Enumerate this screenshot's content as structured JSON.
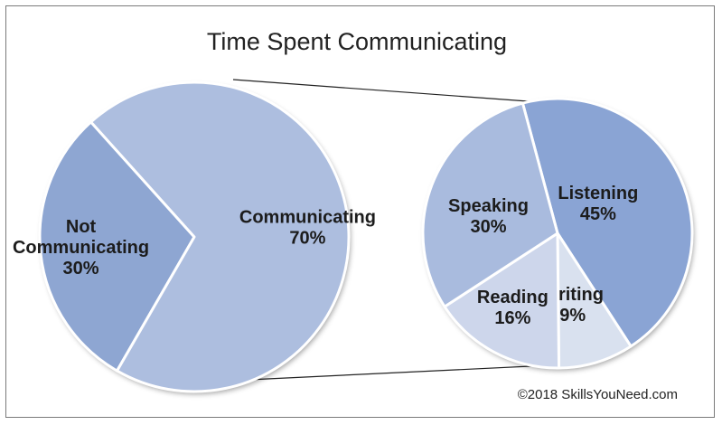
{
  "chart_data": {
    "type": "pie",
    "title": "Time Spent Communicating",
    "copyright": "©2018 SkillsYouNeed.com",
    "pies": [
      {
        "slices": [
          {
            "name": "Not",
            "name2": "Communicating",
            "label": "30%",
            "value": 30,
            "color": "#8ea6d2"
          },
          {
            "name": "Communicating",
            "label": "70%",
            "value": 70,
            "color": "#adbedf"
          }
        ]
      },
      {
        "slices": [
          {
            "name": "Listening",
            "label": "45%",
            "value": 45,
            "color": "#8aa4d4"
          },
          {
            "name": "Writing",
            "label": "9%",
            "value": 9,
            "color": "#d9e1ef"
          },
          {
            "name": "Reading",
            "label": "16%",
            "value": 16,
            "color": "#cdd6eb"
          },
          {
            "name": "Speaking",
            "label": "30%",
            "value": 30,
            "color": "#a9bbde"
          }
        ]
      }
    ]
  }
}
